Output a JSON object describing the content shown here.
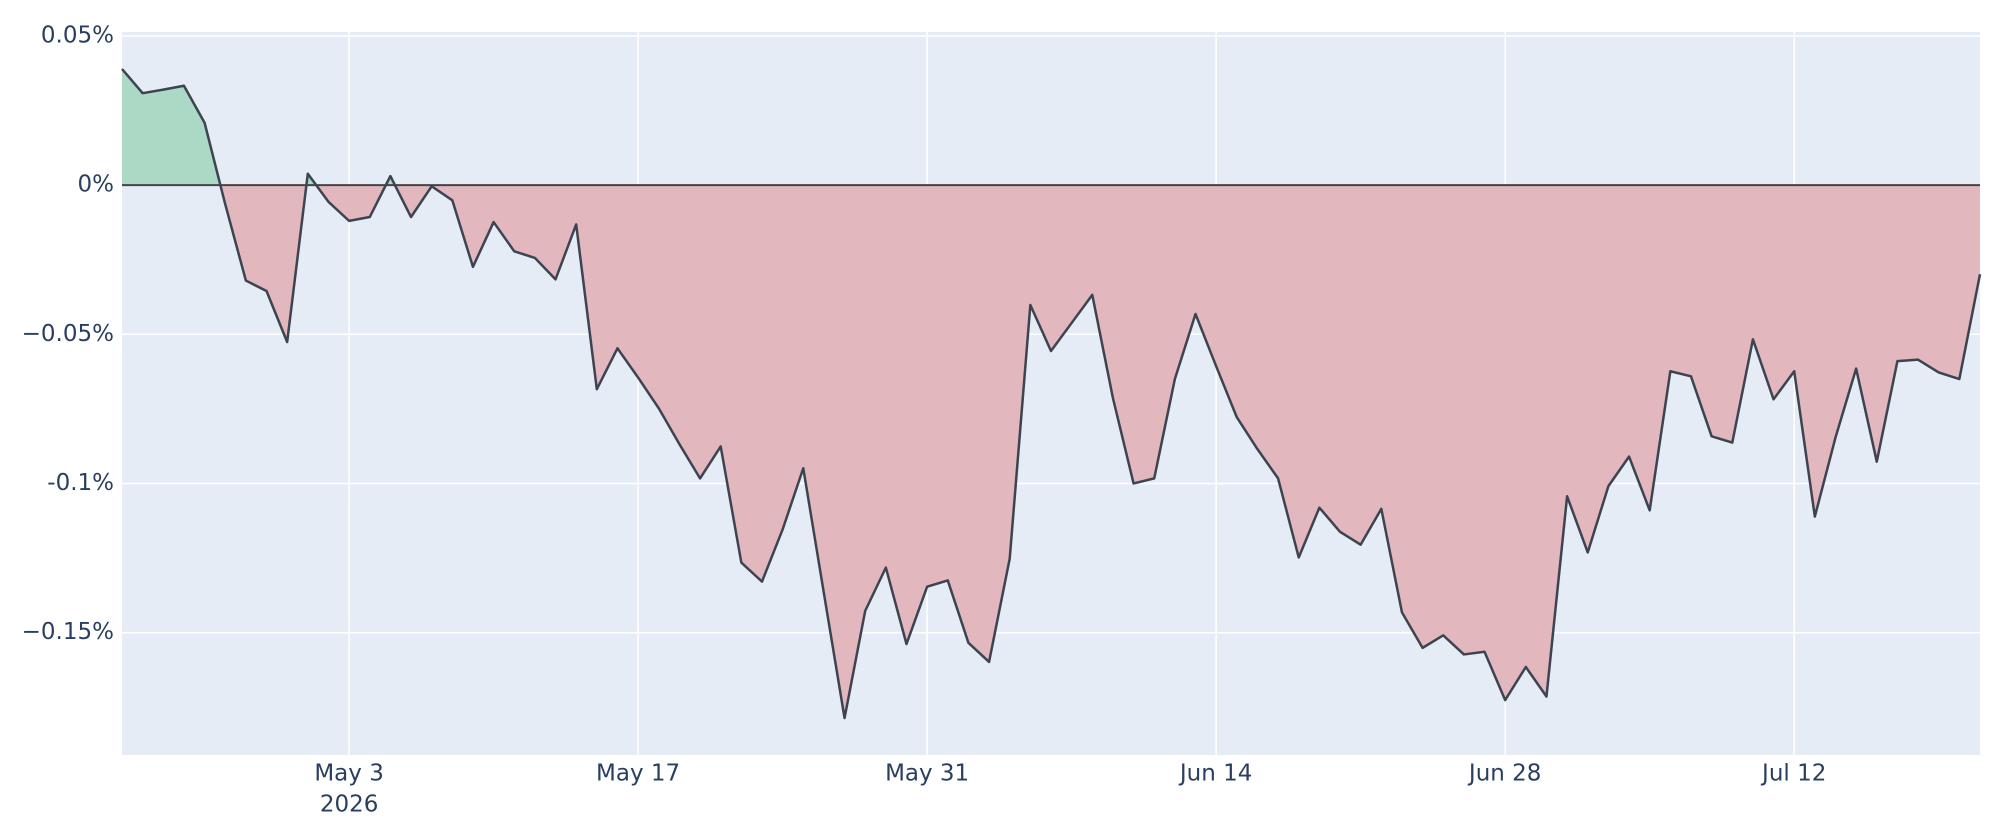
{
  "chart_data": {
    "type": "area-line",
    "x": [
      "2026-04-22",
      "2026-04-23",
      "2026-04-24",
      "2026-04-25",
      "2026-04-26",
      "2026-04-27",
      "2026-04-28",
      "2026-04-29",
      "2026-04-30",
      "2026-05-01",
      "2026-05-02",
      "2026-05-03",
      "2026-05-04",
      "2026-05-05",
      "2026-05-06",
      "2026-05-07",
      "2026-05-08",
      "2026-05-09",
      "2026-05-10",
      "2026-05-11",
      "2026-05-12",
      "2026-05-13",
      "2026-05-14",
      "2026-05-15",
      "2026-05-16",
      "2026-05-17",
      "2026-05-18",
      "2026-05-19",
      "2026-05-20",
      "2026-05-21",
      "2026-05-22",
      "2026-05-23",
      "2026-05-24",
      "2026-05-25",
      "2026-05-26",
      "2026-05-27",
      "2026-05-28",
      "2026-05-29",
      "2026-05-30",
      "2026-05-31",
      "2026-06-01",
      "2026-06-02",
      "2026-06-03",
      "2026-06-04",
      "2026-06-05",
      "2026-06-06",
      "2026-06-07",
      "2026-06-08",
      "2026-06-09",
      "2026-06-10",
      "2026-06-11",
      "2026-06-12",
      "2026-06-13",
      "2026-06-14",
      "2026-06-15",
      "2026-06-16",
      "2026-06-17",
      "2026-06-18",
      "2026-06-19",
      "2026-06-20",
      "2026-06-21",
      "2026-06-22",
      "2026-06-23",
      "2026-06-24",
      "2026-06-25",
      "2026-06-26",
      "2026-06-27",
      "2026-06-28",
      "2026-06-29",
      "2026-06-30",
      "2026-07-01",
      "2026-07-02",
      "2026-07-03",
      "2026-07-04",
      "2026-07-05",
      "2026-07-06",
      "2026-07-07",
      "2026-07-08",
      "2026-07-09",
      "2026-07-10",
      "2026-07-11",
      "2026-07-12",
      "2026-07-13",
      "2026-07-14",
      "2026-07-15",
      "2026-07-16",
      "2026-07-17",
      "2026-07-18",
      "2026-07-19",
      "2026-07-20",
      "2026-07-21"
    ],
    "series": [
      {
        "color": "#3d4451",
        "positive_color": "#acd8c6",
        "negative_color": "#e2b7be",
        "values": [
          0.0389,
          0.0308,
          0.032,
          0.0333,
          0.0209,
          -0.0064,
          -0.032,
          -0.0355,
          -0.0526,
          0.0038,
          -0.0056,
          -0.012,
          -0.0107,
          0.003,
          -0.0107,
          -0.0004,
          -0.0051,
          -0.0274,
          -0.0124,
          -0.0222,
          -0.0244,
          -0.0316,
          -0.0132,
          -0.0684,
          -0.0547,
          -0.0645,
          -0.0748,
          -0.0868,
          -0.0983,
          -0.0876,
          -0.1265,
          -0.1329,
          -0.1154,
          -0.0949,
          -0.1368,
          -0.1786,
          -0.1427,
          -0.1282,
          -0.1538,
          -0.1346,
          -0.1325,
          -0.1534,
          -0.1598,
          -0.1252,
          -0.0402,
          -0.0556,
          -0.0462,
          -0.0368,
          -0.0714,
          -0.1,
          -0.0983,
          -0.065,
          -0.0432,
          -0.0607,
          -0.0778,
          -0.0885,
          -0.0983,
          -0.1248,
          -0.1081,
          -0.1162,
          -0.1205,
          -0.1085,
          -0.1432,
          -0.1551,
          -0.1509,
          -0.1573,
          -0.1564,
          -0.1726,
          -0.1615,
          -0.1714,
          -0.1043,
          -0.1231,
          -0.1009,
          -0.091,
          -0.109,
          -0.0624,
          -0.0641,
          -0.0842,
          -0.0863,
          -0.0517,
          -0.0718,
          -0.0624,
          -0.1111,
          -0.0846,
          -0.0615,
          -0.0927,
          -0.059,
          -0.0585,
          -0.0628,
          -0.065,
          -0.0299
        ]
      }
    ],
    "xlim": [
      "2026-04-22",
      "2026-07-21"
    ],
    "xticks": [
      {
        "value": "2026-05-03",
        "label": "May 3",
        "sublabel": "2026"
      },
      {
        "value": "2026-05-17",
        "label": "May 17"
      },
      {
        "value": "2026-05-31",
        "label": "May 31"
      },
      {
        "value": "2026-06-14",
        "label": "Jun 14"
      },
      {
        "value": "2026-06-28",
        "label": "Jun 28"
      },
      {
        "value": "2026-07-12",
        "label": "Jul 12"
      }
    ],
    "ylim": [
      -0.191,
      0.0513
    ],
    "yticks": [
      {
        "value": 0.05,
        "label": "0.05%"
      },
      {
        "value": 0,
        "label": "0%"
      },
      {
        "value": -0.05,
        "label": "−0.05%"
      },
      {
        "value": -0.1,
        "label": "-0.1%"
      },
      {
        "value": -0.15,
        "label": "−0.15%"
      }
    ],
    "grid": true,
    "background": "#e5ecf6"
  }
}
